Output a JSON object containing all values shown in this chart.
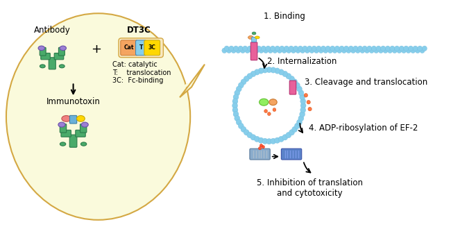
{
  "bg_color": "#ffffff",
  "bubble_color": "#fafadc",
  "bubble_edge_color": "#d4a843",
  "membrane_color": "#87ceeb",
  "membrane_edge_color": "#6ab5d8",
  "label_1": "1. Binding",
  "label_2": "2. Internalization",
  "label_3": "3. Cleavage and translocation",
  "label_4": "4. ADP-ribosylation of EF-2",
  "label_5": "5. Inhibition of translation\nand cytotoxicity",
  "antibody_label": "Antibody",
  "dt3c_label": "DT3C",
  "immunotoxin_label": "Immunotoxin",
  "plus_label": "+",
  "cat_label": "Cat",
  "t_label": "T",
  "fc_label": "3C",
  "legend_cat": "Cat: catalytic",
  "legend_t": "T:    translocation",
  "legend_3c": "3C:  Fc-binding",
  "cat_color": "#f4a460",
  "t_color": "#87ceeb",
  "fc_color": "#ffd700",
  "green_color": "#4aaa6a",
  "green_edge": "#2a7a4a",
  "purple_color": "#9b7fd4",
  "purple_edge": "#6a50aa",
  "pink_color": "#f08080",
  "pink_edge": "#c05050",
  "receptor_color": "#e8609a",
  "receptor_edge": "#b83070",
  "orange_red": "#ff6633",
  "ribosome_gray": "#6a8faf",
  "ribosome_blue": "#3a6faf",
  "lime_color": "#90ee60",
  "small_dot_color": "#ff7744"
}
